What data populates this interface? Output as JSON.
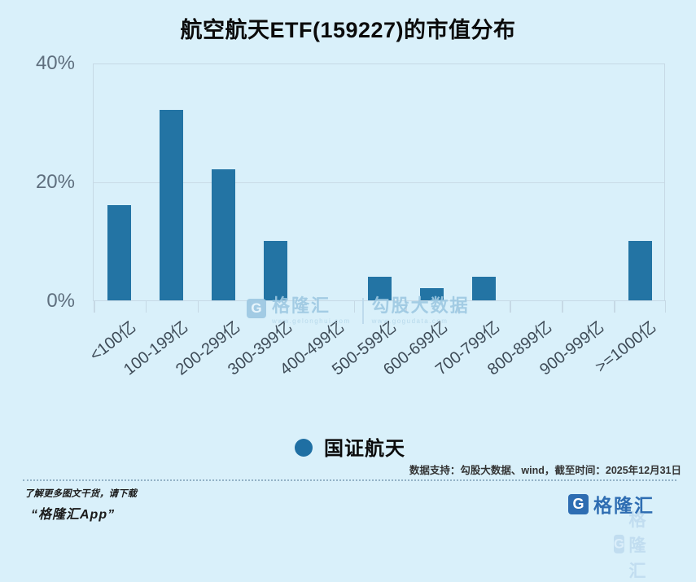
{
  "title": "航空航天ETF(159227)的市值分布",
  "chart_data": {
    "type": "bar",
    "title": "航空航天ETF(159227)的市值分布",
    "categories": [
      "<100亿",
      "100-199亿",
      "200-299亿",
      "300-399亿",
      "400-499亿",
      "500-599亿",
      "600-699亿",
      "700-799亿",
      "800-899亿",
      "900-999亿",
      ">=1000亿"
    ],
    "values": [
      16,
      32,
      22,
      10,
      0,
      4,
      2,
      4,
      0,
      0,
      10
    ],
    "unit": "%",
    "ylim": [
      0,
      40
    ],
    "yticks": [
      0,
      20,
      40
    ],
    "ytick_labels": [
      "0%",
      "20%",
      "40%"
    ],
    "xlabel": "",
    "ylabel": "",
    "grid": true,
    "legend_position": "bottom",
    "series_name": "国证航天",
    "bar_color": "#2374a4"
  },
  "legend": {
    "label": "国证航天"
  },
  "watermark": {
    "gelonghui_letter": "G",
    "gelonghui": "格隆汇",
    "gelonghui_url": "www.gelonghui.com",
    "gogudata": "勾股大数据",
    "gogudata_url": "www.gogudata.com"
  },
  "footnote": "数据支持：勾股大数据、wind，截至时间：2025年12月31日",
  "footer": {
    "promo_line1": "了解更多图文干货，请下载",
    "promo_line2": "“格隆汇App”",
    "logo_letter": "G",
    "logo_text": "格隆汇"
  },
  "colors": {
    "background": "#d9f0fa",
    "bar": "#2374a4",
    "plot_border": "#c6d9e5",
    "axis_text": "#5f6f7e",
    "category_text": "#3e4b57",
    "watermark": "#9ec9e2",
    "logo_blue": "#2e6db2"
  }
}
